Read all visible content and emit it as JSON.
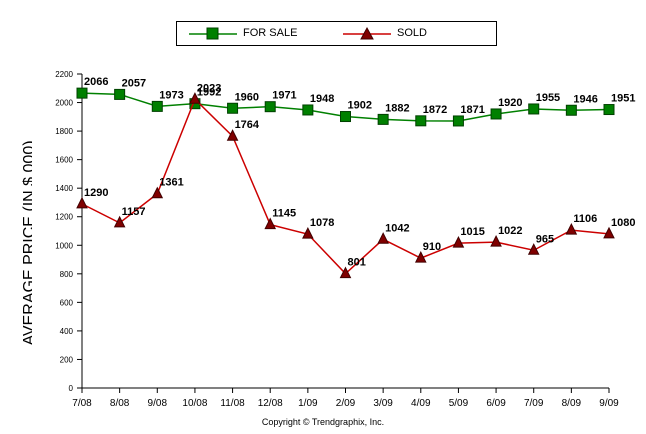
{
  "chart_data": {
    "type": "line",
    "categories": [
      "7/08",
      "8/08",
      "9/08",
      "10/08",
      "11/08",
      "12/08",
      "1/09",
      "2/09",
      "3/09",
      "4/09",
      "5/09",
      "6/09",
      "7/09",
      "8/09",
      "9/09"
    ],
    "series": [
      {
        "name": "FOR SALE",
        "color": "#008000",
        "marker": "square",
        "values": [
          2066,
          2057,
          1973,
          1992,
          1960,
          1971,
          1948,
          1902,
          1882,
          1872,
          1871,
          1920,
          1955,
          1946,
          1951
        ]
      },
      {
        "name": "SOLD",
        "color": "#cc0000",
        "marker": "triangle",
        "values": [
          1290,
          1157,
          1361,
          2023,
          1764,
          1145,
          1078,
          801,
          1042,
          910,
          1015,
          1022,
          965,
          1106,
          1080
        ]
      }
    ],
    "ylabel": "AVERAGE PRICE (IN $,000)",
    "ylim": [
      0,
      2200
    ],
    "yticks": [
      0,
      200,
      400,
      600,
      800,
      1000,
      1200,
      1400,
      1600,
      1800,
      2000,
      2200
    ],
    "grid": false,
    "legend_position": "top-center"
  },
  "legend": {
    "for_sale": "FOR SALE",
    "sold": "SOLD"
  },
  "footer": {
    "copyright": "Copyright © Trendgraphix, Inc."
  }
}
